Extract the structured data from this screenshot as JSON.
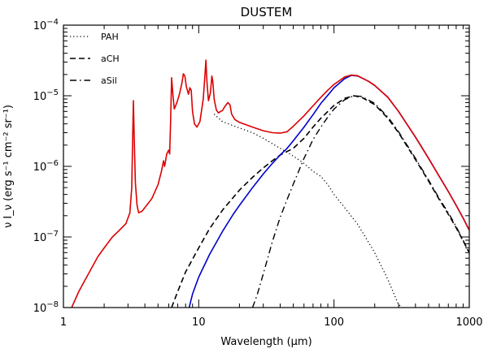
{
  "chart_data": {
    "type": "line",
    "title": "DUSTEM",
    "xlabel": "Wavelength (μm)",
    "ylabel": "ν I_ν (erg s⁻¹ cm⁻² sr⁻¹)",
    "xscale": "log",
    "yscale": "log",
    "xlim": [
      1,
      1000
    ],
    "ylim": [
      1e-08,
      0.0001
    ],
    "grid": false,
    "legend_position": "top-left",
    "x_ticks": [
      {
        "value": 1,
        "label": "1"
      },
      {
        "value": 10,
        "label": "10"
      },
      {
        "value": 100,
        "label": "100"
      },
      {
        "value": 1000,
        "label": "1000"
      }
    ],
    "y_ticks": [
      {
        "value": 1e-08,
        "mant": "10",
        "exp": "−8"
      },
      {
        "value": 1e-07,
        "mant": "10",
        "exp": "−7"
      },
      {
        "value": 1e-06,
        "mant": "10",
        "exp": "−6"
      },
      {
        "value": 1e-05,
        "mant": "10",
        "exp": "−5"
      },
      {
        "value": 0.0001,
        "mant": "10",
        "exp": "−4"
      }
    ],
    "series": [
      {
        "name": "PAH",
        "style": "dotted",
        "color": "#000000",
        "points": [
          [
            13,
            5.5e-06
          ],
          [
            15,
            4.3e-06
          ],
          [
            20,
            3.5e-06
          ],
          [
            25,
            3e-06
          ],
          [
            30,
            2.5e-06
          ],
          [
            40,
            1.8e-06
          ],
          [
            50,
            1.4e-06
          ],
          [
            60,
            1.1e-06
          ],
          [
            70,
            8.5e-07
          ],
          [
            80,
            7.2e-07
          ],
          [
            90,
            5.5e-07
          ],
          [
            100,
            4e-07
          ],
          [
            120,
            2.6e-07
          ],
          [
            150,
            1.5e-07
          ],
          [
            200,
            6e-08
          ],
          [
            250,
            2.5e-08
          ],
          [
            300,
            1.1e-08
          ],
          [
            320,
            1e-08
          ]
        ]
      },
      {
        "name": "aCH",
        "style": "dashed",
        "color": "#000000",
        "points": [
          [
            6.3,
            1e-08
          ],
          [
            7,
            1.7e-08
          ],
          [
            8,
            3.2e-08
          ],
          [
            10,
            7e-08
          ],
          [
            12,
            1.3e-07
          ],
          [
            15,
            2.4e-07
          ],
          [
            20,
            4.6e-07
          ],
          [
            25,
            7e-07
          ],
          [
            30,
            9.5e-07
          ],
          [
            35,
            1.2e-06
          ],
          [
            40,
            1.45e-06
          ],
          [
            50,
            1.8e-06
          ],
          [
            60,
            2.5e-06
          ],
          [
            70,
            3.6e-06
          ],
          [
            80,
            4.8e-06
          ],
          [
            100,
            7.3e-06
          ],
          [
            120,
            9.2e-06
          ],
          [
            140,
            1e-05
          ],
          [
            160,
            9.5e-06
          ],
          [
            200,
            7.5e-06
          ],
          [
            250,
            4.8e-06
          ],
          [
            300,
            3e-06
          ],
          [
            400,
            1.25e-06
          ],
          [
            500,
            6.2e-07
          ],
          [
            600,
            3.4e-07
          ],
          [
            700,
            2.1e-07
          ],
          [
            800,
            1.35e-07
          ],
          [
            900,
            8.8e-08
          ],
          [
            1000,
            6e-08
          ]
        ]
      },
      {
        "name": "aSil",
        "style": "dashdot",
        "color": "#000000",
        "points": [
          [
            25,
            1e-08
          ],
          [
            27,
            1.5e-08
          ],
          [
            30,
            3e-08
          ],
          [
            35,
            8.5e-08
          ],
          [
            40,
            1.9e-07
          ],
          [
            45,
            3.4e-07
          ],
          [
            50,
            5.6e-07
          ],
          [
            60,
            1.3e-06
          ],
          [
            70,
            2.4e-06
          ],
          [
            80,
            3.6e-06
          ],
          [
            90,
            5e-06
          ],
          [
            100,
            6.5e-06
          ],
          [
            120,
            8.8e-06
          ],
          [
            140,
            1e-05
          ],
          [
            160,
            9.8e-06
          ],
          [
            200,
            7.8e-06
          ],
          [
            250,
            5e-06
          ],
          [
            300,
            3.1e-06
          ],
          [
            400,
            1.3e-06
          ],
          [
            500,
            6.4e-07
          ],
          [
            600,
            3.5e-07
          ],
          [
            700,
            2.2e-07
          ],
          [
            800,
            1.4e-07
          ],
          [
            900,
            9e-08
          ],
          [
            1000,
            5.8e-08
          ]
        ]
      },
      {
        "name": "",
        "style": "solid",
        "color": "#0000cc",
        "points": [
          [
            8.5,
            1e-08
          ],
          [
            9,
            1.55e-08
          ],
          [
            10,
            2.7e-08
          ],
          [
            12,
            5.6e-08
          ],
          [
            15,
            1.2e-07
          ],
          [
            18,
            2.1e-07
          ],
          [
            20,
            2.8e-07
          ],
          [
            25,
            5e-07
          ],
          [
            30,
            7.8e-07
          ],
          [
            35,
            1.1e-06
          ],
          [
            40,
            1.45e-06
          ],
          [
            45,
            1.8e-06
          ],
          [
            50,
            2.3e-06
          ],
          [
            60,
            3.6e-06
          ],
          [
            70,
            5.4e-06
          ],
          [
            80,
            7.8e-06
          ],
          [
            90,
            1.02e-05
          ],
          [
            100,
            1.3e-05
          ],
          [
            120,
            1.75e-05
          ],
          [
            135,
            1.95e-05
          ],
          [
            150,
            1.9e-05
          ],
          [
            180,
            1.6e-05
          ],
          [
            200,
            1.4e-05
          ],
          [
            250,
            9.5e-06
          ],
          [
            300,
            6e-06
          ],
          [
            400,
            2.6e-06
          ],
          [
            500,
            1.3e-06
          ],
          [
            600,
            7.2e-07
          ],
          [
            700,
            4.4e-07
          ],
          [
            800,
            2.8e-07
          ],
          [
            900,
            1.85e-07
          ],
          [
            1000,
            1.25e-07
          ]
        ]
      },
      {
        "name": "",
        "style": "solid",
        "color": "#dd0000",
        "points": [
          [
            1.15,
            1e-08
          ],
          [
            1.3,
            1.7e-08
          ],
          [
            1.5,
            2.8e-08
          ],
          [
            1.8,
            5.3e-08
          ],
          [
            2.0,
            7e-08
          ],
          [
            2.3,
            1e-07
          ],
          [
            2.6,
            1.25e-07
          ],
          [
            2.9,
            1.55e-07
          ],
          [
            3.1,
            2.2e-07
          ],
          [
            3.2,
            5e-07
          ],
          [
            3.25,
            2.5e-06
          ],
          [
            3.29,
            8.5e-06
          ],
          [
            3.33,
            3e-06
          ],
          [
            3.4,
            6e-07
          ],
          [
            3.5,
            2.8e-07
          ],
          [
            3.6,
            2.2e-07
          ],
          [
            3.8,
            2.3e-07
          ],
          [
            4.0,
            2.6e-07
          ],
          [
            4.5,
            3.5e-07
          ],
          [
            5.0,
            5.5e-07
          ],
          [
            5.3,
            8.5e-07
          ],
          [
            5.5,
            1.2e-06
          ],
          [
            5.6,
            1e-06
          ],
          [
            5.8,
            1.5e-06
          ],
          [
            6.0,
            1.7e-06
          ],
          [
            6.1,
            1.5e-06
          ],
          [
            6.2,
            4.5e-06
          ],
          [
            6.3,
            1.8e-05
          ],
          [
            6.45,
            1e-05
          ],
          [
            6.6,
            6.5e-06
          ],
          [
            6.9,
            8e-06
          ],
          [
            7.2,
            1.05e-05
          ],
          [
            7.5,
            1.5e-05
          ],
          [
            7.7,
            2.05e-05
          ],
          [
            7.9,
            1.9e-05
          ],
          [
            8.1,
            1.35e-05
          ],
          [
            8.4,
            1.05e-05
          ],
          [
            8.6,
            1.3e-05
          ],
          [
            8.8,
            1.2e-05
          ],
          [
            9.0,
            6e-06
          ],
          [
            9.3,
            4e-06
          ],
          [
            9.7,
            3.6e-06
          ],
          [
            10.2,
            4.3e-06
          ],
          [
            10.8,
            9e-06
          ],
          [
            11.1,
            1.9e-05
          ],
          [
            11.3,
            3.2e-05
          ],
          [
            11.5,
            1.6e-05
          ],
          [
            11.8,
            8.5e-06
          ],
          [
            12.2,
            1.1e-05
          ],
          [
            12.5,
            1.9e-05
          ],
          [
            12.7,
            1.6e-05
          ],
          [
            13.0,
            9e-06
          ],
          [
            13.5,
            6.3e-06
          ],
          [
            14.0,
            5.7e-06
          ],
          [
            14.5,
            6e-06
          ],
          [
            15.0,
            6.2e-06
          ],
          [
            15.5,
            6.9e-06
          ],
          [
            16.4,
            8e-06
          ],
          [
            17.0,
            7.5e-06
          ],
          [
            17.5,
            5.5e-06
          ],
          [
            18.5,
            4.6e-06
          ],
          [
            20,
            4.2e-06
          ],
          [
            25,
            3.6e-06
          ],
          [
            30,
            3.2e-06
          ],
          [
            35,
            3e-06
          ],
          [
            40,
            2.95e-06
          ],
          [
            45,
            3.1e-06
          ],
          [
            50,
            3.7e-06
          ],
          [
            60,
            5.2e-06
          ],
          [
            70,
            7.2e-06
          ],
          [
            80,
            9.5e-06
          ],
          [
            90,
            1.2e-05
          ],
          [
            100,
            1.45e-05
          ],
          [
            120,
            1.85e-05
          ],
          [
            135,
            1.97e-05
          ],
          [
            150,
            1.92e-05
          ],
          [
            180,
            1.6e-05
          ],
          [
            200,
            1.4e-05
          ],
          [
            250,
            9.5e-06
          ],
          [
            300,
            6e-06
          ],
          [
            400,
            2.6e-06
          ],
          [
            500,
            1.3e-06
          ],
          [
            600,
            7.2e-07
          ],
          [
            700,
            4.4e-07
          ],
          [
            800,
            2.8e-07
          ],
          [
            900,
            1.85e-07
          ],
          [
            1000,
            1.25e-07
          ]
        ]
      }
    ]
  }
}
